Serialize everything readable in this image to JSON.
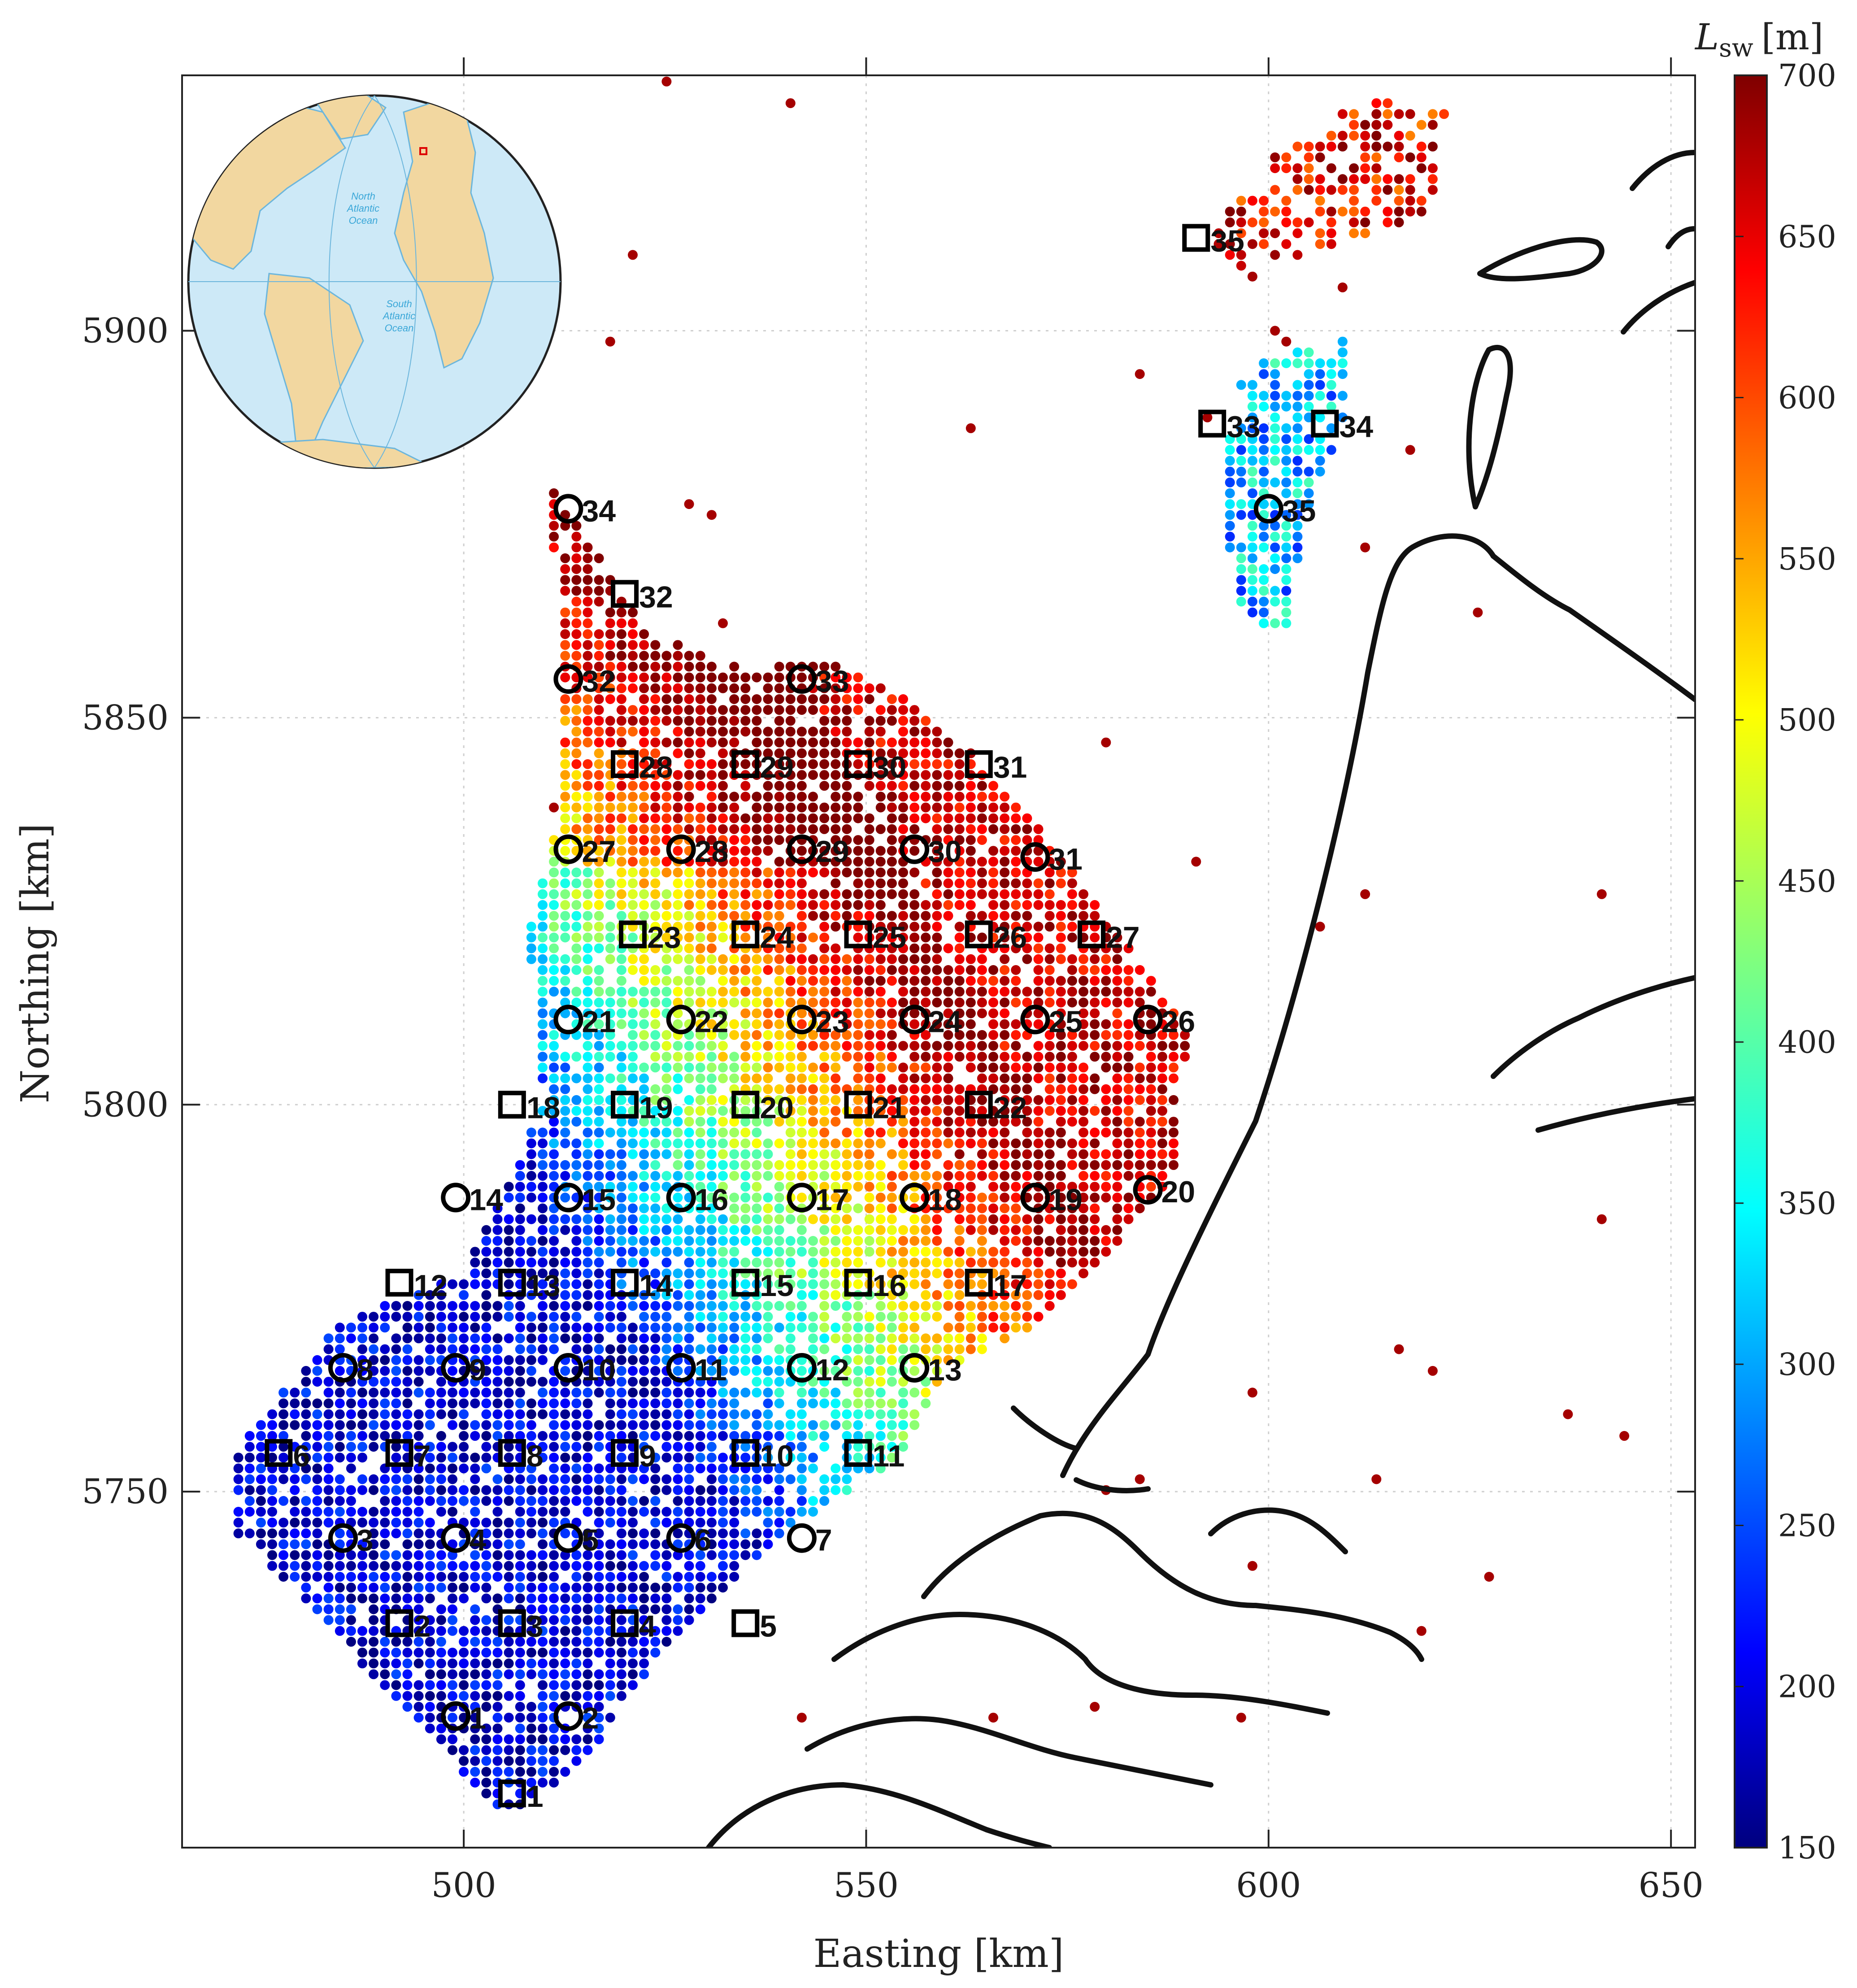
{
  "chart_data": {
    "type": "scatter",
    "title": "",
    "xlabel": "Easting [km]",
    "ylabel": "Northing [km]",
    "xlim": [
      465,
      653
    ],
    "ylim": [
      5704,
      5933
    ],
    "xticks": [
      "500",
      "550",
      "600",
      "650"
    ],
    "yticks": [
      "5750",
      "5800",
      "5850",
      "5900"
    ],
    "xtick_values": [
      500,
      550,
      600,
      650
    ],
    "ytick_values": [
      5750,
      5800,
      5850,
      5900
    ],
    "grid": true,
    "colorbar": {
      "label": "L_sw [m]",
      "label_main": "L",
      "label_sub": "sw",
      "label_unit": "[m]",
      "min": 150,
      "max": 700,
      "ticks": [
        "150",
        "200",
        "250",
        "300",
        "350",
        "400",
        "450",
        "500",
        "550",
        "600",
        "650",
        "700"
      ],
      "colormap": "jet",
      "levels": 64
    },
    "circle_stations": [
      {
        "id": "1",
        "x": 499,
        "y": 5721
      },
      {
        "id": "2",
        "x": 513,
        "y": 5721
      },
      {
        "id": "3",
        "x": 485,
        "y": 5744
      },
      {
        "id": "4",
        "x": 499,
        "y": 5744
      },
      {
        "id": "5",
        "x": 513,
        "y": 5744
      },
      {
        "id": "6",
        "x": 527,
        "y": 5744
      },
      {
        "id": "7",
        "x": 542,
        "y": 5744
      },
      {
        "id": "8",
        "x": 485,
        "y": 5766
      },
      {
        "id": "9",
        "x": 499,
        "y": 5766
      },
      {
        "id": "10",
        "x": 513,
        "y": 5766
      },
      {
        "id": "11",
        "x": 527,
        "y": 5766
      },
      {
        "id": "12",
        "x": 542,
        "y": 5766
      },
      {
        "id": "13",
        "x": 556,
        "y": 5766
      },
      {
        "id": "14",
        "x": 499,
        "y": 5788
      },
      {
        "id": "15",
        "x": 513,
        "y": 5788
      },
      {
        "id": "16",
        "x": 527,
        "y": 5788
      },
      {
        "id": "17",
        "x": 542,
        "y": 5788
      },
      {
        "id": "18",
        "x": 556,
        "y": 5788
      },
      {
        "id": "19",
        "x": 571,
        "y": 5788
      },
      {
        "id": "20",
        "x": 585,
        "y": 5789
      },
      {
        "id": "21",
        "x": 513,
        "y": 5811
      },
      {
        "id": "22",
        "x": 527,
        "y": 5811
      },
      {
        "id": "23",
        "x": 542,
        "y": 5811
      },
      {
        "id": "24",
        "x": 556,
        "y": 5811
      },
      {
        "id": "25",
        "x": 571,
        "y": 5811
      },
      {
        "id": "26",
        "x": 585,
        "y": 5811
      },
      {
        "id": "27",
        "x": 513,
        "y": 5833
      },
      {
        "id": "28",
        "x": 527,
        "y": 5833
      },
      {
        "id": "29",
        "x": 542,
        "y": 5833
      },
      {
        "id": "30",
        "x": 556,
        "y": 5833
      },
      {
        "id": "31",
        "x": 571,
        "y": 5832
      },
      {
        "id": "32",
        "x": 513,
        "y": 5855
      },
      {
        "id": "33",
        "x": 542,
        "y": 5855
      },
      {
        "id": "34",
        "x": 513,
        "y": 5877
      },
      {
        "id": "35",
        "x": 600,
        "y": 5877
      }
    ],
    "square_stations": [
      {
        "id": "1",
        "x": 506,
        "y": 5711
      },
      {
        "id": "2",
        "x": 492,
        "y": 5733
      },
      {
        "id": "3",
        "x": 506,
        "y": 5733
      },
      {
        "id": "4",
        "x": 520,
        "y": 5733
      },
      {
        "id": "5",
        "x": 535,
        "y": 5733
      },
      {
        "id": "6",
        "x": 477,
        "y": 5755
      },
      {
        "id": "7",
        "x": 492,
        "y": 5755
      },
      {
        "id": "8",
        "x": 506,
        "y": 5755
      },
      {
        "id": "9",
        "x": 520,
        "y": 5755
      },
      {
        "id": "10",
        "x": 535,
        "y": 5755
      },
      {
        "id": "11",
        "x": 549,
        "y": 5755
      },
      {
        "id": "12",
        "x": 492,
        "y": 5777
      },
      {
        "id": "13",
        "x": 506,
        "y": 5777
      },
      {
        "id": "14",
        "x": 520,
        "y": 5777
      },
      {
        "id": "15",
        "x": 535,
        "y": 5777
      },
      {
        "id": "16",
        "x": 549,
        "y": 5777
      },
      {
        "id": "17",
        "x": 564,
        "y": 5777
      },
      {
        "id": "18",
        "x": 506,
        "y": 5800
      },
      {
        "id": "19",
        "x": 520,
        "y": 5800
      },
      {
        "id": "20",
        "x": 535,
        "y": 5800
      },
      {
        "id": "21",
        "x": 549,
        "y": 5800
      },
      {
        "id": "22",
        "x": 564,
        "y": 5800
      },
      {
        "id": "23",
        "x": 521,
        "y": 5822
      },
      {
        "id": "24",
        "x": 535,
        "y": 5822
      },
      {
        "id": "25",
        "x": 549,
        "y": 5822
      },
      {
        "id": "26",
        "x": 564,
        "y": 5822
      },
      {
        "id": "27",
        "x": 578,
        "y": 5822
      },
      {
        "id": "28",
        "x": 520,
        "y": 5844
      },
      {
        "id": "29",
        "x": 535,
        "y": 5844
      },
      {
        "id": "30",
        "x": 549,
        "y": 5844
      },
      {
        "id": "31",
        "x": 564,
        "y": 5844
      },
      {
        "id": "32",
        "x": 520,
        "y": 5866
      },
      {
        "id": "33",
        "x": 593,
        "y": 5888
      },
      {
        "id": "34",
        "x": 607,
        "y": 5888
      },
      {
        "id": "35",
        "x": 591,
        "y": 5912
      }
    ]
  },
  "inset": {
    "ocean_north": [
      "North",
      "Atlantic",
      "Ocean"
    ],
    "ocean_south": [
      "South",
      "Atlantic",
      "Ocean"
    ]
  }
}
